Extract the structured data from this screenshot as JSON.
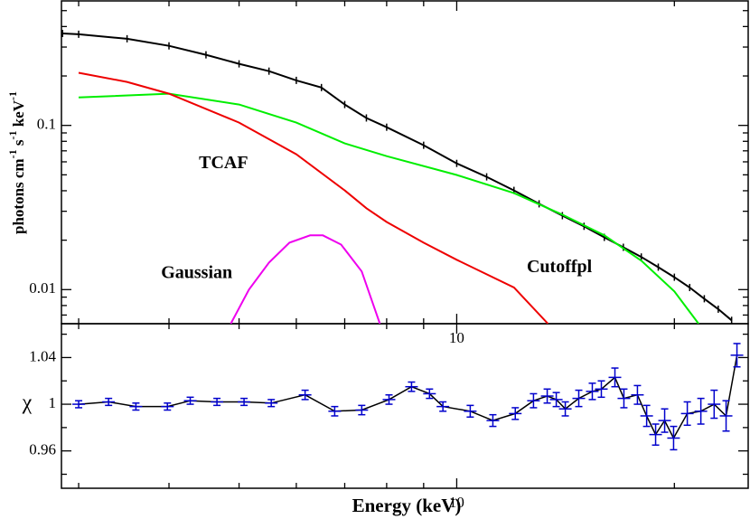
{
  "chart_data": [
    {
      "type": "line",
      "log_x": true,
      "log_y": true,
      "ylabel_parts": [
        "photons cm",
        "-1",
        " s",
        "-1",
        " keV",
        "-1"
      ],
      "xlim": [
        2.84,
        25.3
      ],
      "ylim": [
        0.0062,
        0.573
      ],
      "xticks": [
        10
      ],
      "xminorticks": [
        3,
        4,
        5,
        6,
        7,
        8,
        9,
        20
      ],
      "yticks": [
        0.01,
        0.1
      ],
      "yminorticks": [
        0.007,
        0.008,
        0.009,
        0.02,
        0.03,
        0.04,
        0.05,
        0.06,
        0.07,
        0.08,
        0.09,
        0.2,
        0.3,
        0.4,
        0.5
      ],
      "annotations": [
        {
          "text": "TCAF",
          "x": 4.4,
          "y": 0.058
        },
        {
          "text": "Gaussian",
          "x": 3.9,
          "y": 0.0125
        },
        {
          "text": "Cutoffpl",
          "x": 12.5,
          "y": 0.0135
        }
      ],
      "series": [
        {
          "color": "#000000",
          "marks": true,
          "x": [
            2.85,
            3,
            3.5,
            4,
            4.5,
            5,
            5.5,
            6,
            6.5,
            7,
            7.5,
            8,
            9,
            10,
            11,
            12,
            13,
            14,
            15,
            16,
            17,
            18,
            19,
            20,
            21,
            22,
            23,
            24
          ],
          "values": [
            0.363,
            0.359,
            0.337,
            0.305,
            0.269,
            0.237,
            0.214,
            0.188,
            0.17,
            0.134,
            0.111,
            0.0975,
            0.0757,
            0.0587,
            0.0486,
            0.0402,
            0.0333,
            0.0282,
            0.0243,
            0.0208,
            0.0181,
            0.0158,
            0.0137,
            0.0119,
            0.0103,
            0.0088,
            0.0076,
            0.0065
          ]
        },
        {
          "color": "#00ee00",
          "marks": false,
          "x": [
            3,
            4,
            5,
            6,
            7,
            8,
            10,
            12,
            14,
            16,
            18,
            20,
            21.6
          ],
          "values": [
            0.148,
            0.156,
            0.134,
            0.104,
            0.0777,
            0.065,
            0.0499,
            0.0387,
            0.0286,
            0.0214,
            0.015,
            0.00975,
            0.0062
          ]
        },
        {
          "color": "#ee0000",
          "marks": false,
          "x": [
            3,
            3.5,
            4,
            5,
            6,
            7,
            7.5,
            8,
            9,
            10,
            12,
            13.37
          ],
          "values": [
            0.209,
            0.184,
            0.156,
            0.104,
            0.0667,
            0.0402,
            0.0313,
            0.0258,
            0.0193,
            0.0152,
            0.0103,
            0.0062
          ]
        },
        {
          "color": "#ee00ee",
          "marks": false,
          "x": [
            4.87,
            5.16,
            5.5,
            5.87,
            6.27,
            6.53,
            6.92,
            7.39,
            7.83
          ],
          "values": [
            0.0062,
            0.01,
            0.0146,
            0.0193,
            0.0214,
            0.0214,
            0.0188,
            0.0129,
            0.0062
          ]
        }
      ]
    },
    {
      "type": "errorline",
      "log_x": true,
      "log_y": false,
      "ylabel": "χ",
      "xlabel": "Energy (keV)",
      "xlim": [
        2.84,
        25.3
      ],
      "ylim": [
        0.928,
        1.069
      ],
      "xticks": [
        10
      ],
      "xminorticks": [
        3,
        4,
        5,
        6,
        7,
        8,
        9,
        20
      ],
      "yticks": [
        0.96,
        1,
        1.04
      ],
      "yminorticks": [
        0.94,
        0.98,
        1.02,
        1.06
      ],
      "series": [
        {
          "color": "#0000cc",
          "line_color": "#000000",
          "x": [
            3.0,
            3.3,
            3.6,
            3.98,
            4.28,
            4.66,
            5.08,
            5.54,
            6.17,
            6.78,
            7.39,
            8.06,
            8.66,
            9.17,
            9.57,
            10.44,
            11.22,
            12.05,
            12.77,
            13.34,
            13.73,
            14.13,
            14.75,
            15.4,
            15.85,
            16.55,
            17.03,
            17.78,
            18.31,
            18.84,
            19.39,
            19.95,
            20.84,
            21.76,
            22.7,
            23.58,
            24.41
          ],
          "values": [
            1.0,
            1.002,
            0.998,
            0.998,
            1.003,
            1.002,
            1.002,
            1.001,
            1.008,
            0.994,
            0.995,
            1.004,
            1.015,
            1.009,
            0.998,
            0.994,
            0.986,
            0.992,
            1.003,
            1.007,
            1.004,
            0.996,
            1.005,
            1.011,
            1.013,
            1.023,
            1.005,
            1.008,
            0.99,
            0.974,
            0.986,
            0.971,
            0.992,
            0.994,
            1.0,
            0.99,
            1.042
          ],
          "errors": [
            0.003,
            0.003,
            0.003,
            0.003,
            0.003,
            0.003,
            0.003,
            0.003,
            0.004,
            0.004,
            0.004,
            0.004,
            0.004,
            0.004,
            0.004,
            0.005,
            0.005,
            0.005,
            0.006,
            0.006,
            0.006,
            0.006,
            0.007,
            0.007,
            0.007,
            0.008,
            0.008,
            0.008,
            0.009,
            0.009,
            0.01,
            0.01,
            0.01,
            0.011,
            0.012,
            0.013,
            0.01
          ]
        }
      ]
    }
  ]
}
